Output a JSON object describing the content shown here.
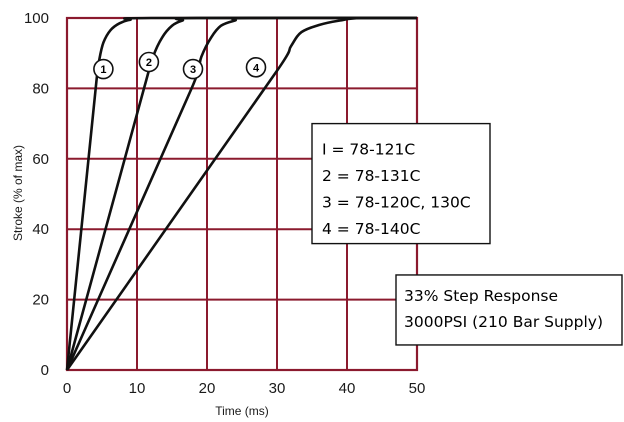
{
  "chart_data": {
    "type": "line",
    "title": "",
    "xlabel": "Time (ms)",
    "ylabel": "Stroke (% of max)",
    "xlim": [
      0,
      50
    ],
    "ylim": [
      0,
      100
    ],
    "x_ticks": [
      "0",
      "10",
      "20",
      "30",
      "40",
      "50"
    ],
    "y_ticks": [
      "0",
      "20",
      "40",
      "60",
      "80",
      "100"
    ],
    "grid": true,
    "colors": {
      "grid": "#8b1a2e",
      "line": "#111111"
    },
    "series": [
      {
        "label": "1",
        "x": [
          0,
          4.2,
          4.6,
          5.2,
          6.2,
          7.5,
          9,
          12,
          50
        ],
        "y": [
          0,
          82,
          88,
          93,
          96.5,
          98.5,
          99.5,
          100,
          100
        ]
      },
      {
        "label": "2",
        "x": [
          0,
          11,
          12.3,
          13.6,
          15,
          16.5,
          18.5,
          50
        ],
        "y": [
          0,
          80,
          89,
          94.5,
          97.8,
          99.3,
          100,
          100
        ]
      },
      {
        "label": "3",
        "x": [
          0,
          17.8,
          19.2,
          20.6,
          22,
          24,
          26,
          50
        ],
        "y": [
          0,
          80,
          89,
          94.5,
          97.8,
          99.3,
          100,
          100
        ]
      },
      {
        "label": "4",
        "x": [
          0,
          30,
          32,
          33.5,
          36,
          39,
          42,
          50
        ],
        "y": [
          0,
          85,
          92,
          96,
          98,
          99.3,
          100,
          100
        ]
      }
    ],
    "markers": [
      {
        "label": "1",
        "x": 5.2,
        "y": 85.5
      },
      {
        "label": "2",
        "x": 11.7,
        "y": 87.5
      },
      {
        "label": "3",
        "x": 18,
        "y": 85.5
      },
      {
        "label": "4",
        "x": 27,
        "y": 86
      }
    ],
    "legend_box": {
      "lines": [
        "I = 78-121C",
        "2 = 78-131C",
        "3 = 78-120C, 130C",
        "4 = 78-140C"
      ],
      "anchor_x": 35,
      "anchor_y": 70
    },
    "note_box": {
      "lines": [
        "33% Step Response",
        "3000PSI (210 Bar Supply)"
      ],
      "anchor_x": 47,
      "anchor_y": 27
    }
  }
}
